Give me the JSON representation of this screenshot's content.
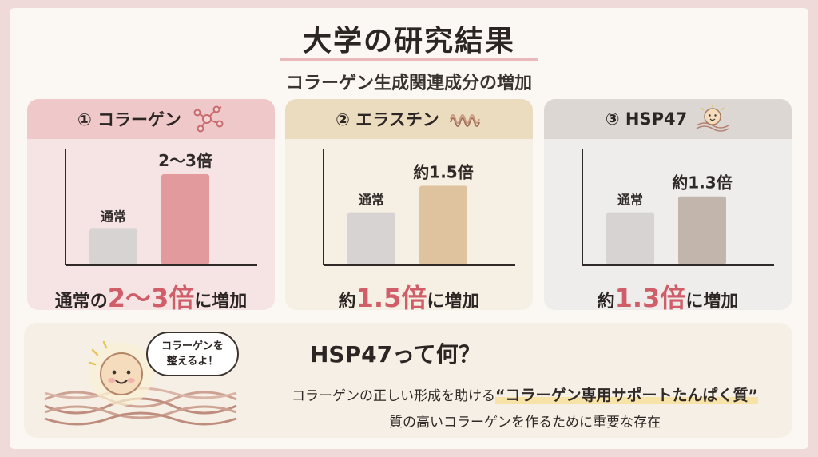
{
  "header": {
    "title": "大学の研究結果",
    "subtitle": "コラーゲン生成関連成分の増加"
  },
  "cards": [
    {
      "label": "① コラーゲン",
      "icon": "molecule-icon",
      "result_prefix": "通常の",
      "result_value": "2〜3倍",
      "result_suffix": "に増加"
    },
    {
      "label": "② エラスチン",
      "icon": "spring-fiber-icon",
      "result_prefix": "約",
      "result_value": "1.5倍",
      "result_suffix": "に増加"
    },
    {
      "label": "③ HSP47",
      "icon": "smiling-ball-icon",
      "result_prefix": "約",
      "result_value": "1.3倍",
      "result_suffix": "に増加"
    }
  ],
  "chart_data": [
    {
      "type": "bar",
      "categories": [
        "通常",
        "2〜3倍"
      ],
      "values": [
        1,
        2.5
      ],
      "colors": [
        "#d7d3d2",
        "#e39a9d"
      ],
      "ylim": [
        0,
        3.2
      ],
      "axis_color": "#2f2a28"
    },
    {
      "type": "bar",
      "categories": [
        "通常",
        "約1.5倍"
      ],
      "values": [
        1,
        1.5
      ],
      "colors": [
        "#d7d3d2",
        "#dfc39e"
      ],
      "ylim": [
        0,
        2.2
      ],
      "axis_color": "#2f2a28"
    },
    {
      "type": "bar",
      "categories": [
        "通常",
        "約1.3倍"
      ],
      "values": [
        1,
        1.3
      ],
      "colors": [
        "#d7d3d2",
        "#c2b5ab"
      ],
      "ylim": [
        0,
        2.2
      ],
      "axis_color": "#2f2a28"
    }
  ],
  "bottom": {
    "question": "HSP47って何？",
    "bubble_line1": "コラーゲンを",
    "bubble_line2": "整えるよ！",
    "desc1_prefix": "コラーゲンの正しい形成を助ける",
    "desc1_emph": "“コラーゲン専用サポートたんぱく質”",
    "desc2": "質の高いコラーゲンを作るために重要な存在"
  },
  "colors": {
    "accent": "#cf5e68",
    "background": "#efd9d9"
  }
}
